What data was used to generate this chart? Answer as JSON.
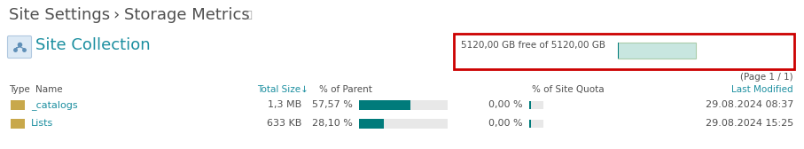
{
  "title_part1": "Site Settings",
  "title_arrow": "›",
  "title_part2": "Storage Metrics",
  "title_info": "ⓘ",
  "section_label": "Site Collection",
  "quota_text": "5120,00 GB free of 5120,00 GB",
  "page_text": "(Page 1 / 1)",
  "rows": [
    {
      "icon_color": "#c8a84b",
      "name": "_catalogs",
      "total_size": "1,3 MB",
      "pct_parent": "57,57 %",
      "bar_parent": 0.5757,
      "pct_quota": "0,00 %",
      "bar_quota": 0.02,
      "last_modified": "29.08.2024 08:37"
    },
    {
      "icon_color": "#c8a84b",
      "name": "Lists",
      "total_size": "633 KB",
      "pct_parent": "28,10 %",
      "bar_parent": 0.281,
      "pct_quota": "0,00 %",
      "bar_quota": 0.02,
      "last_modified": "29.08.2024 15:25"
    }
  ],
  "teal_color": "#007B7B",
  "link_color": "#1c8fa0",
  "header_link_color": "#1c8fa0",
  "bg_color": "#ffffff",
  "text_color": "#505050",
  "gray_text": "#999999",
  "border_color": "#cc0000",
  "quota_bar_bg": "#c8e6e0",
  "quota_bar_fill": "#007B7B",
  "separator_color": "#e0e0e0",
  "icon_site_color": "#a8c4d8"
}
